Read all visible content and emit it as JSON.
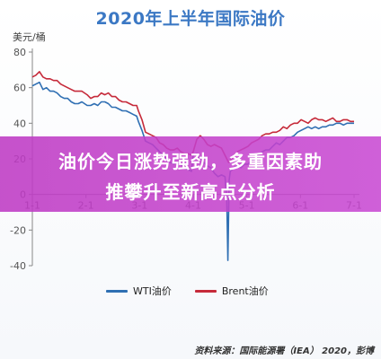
{
  "chart_data": {
    "type": "line",
    "title": "2020年上半年国际油价",
    "ylabel": "美元/桶",
    "xlabel": "",
    "ylim": [
      -40,
      80
    ],
    "yticks": [
      -40,
      -20,
      0,
      20,
      40,
      60,
      80
    ],
    "xticks": [
      "1-1",
      "2-1",
      "3-1",
      "4-1",
      "5-1",
      "6-1",
      "7-1"
    ],
    "legend_position": "bottom",
    "grid": false,
    "series": [
      {
        "name": "WTI油价",
        "color": "#2f6fb3",
        "points": [
          [
            0,
            61
          ],
          [
            2,
            62
          ],
          [
            4,
            63
          ],
          [
            6,
            59
          ],
          [
            8,
            60
          ],
          [
            10,
            58
          ],
          [
            12,
            58
          ],
          [
            14,
            57
          ],
          [
            16,
            55
          ],
          [
            18,
            54
          ],
          [
            20,
            54
          ],
          [
            22,
            52
          ],
          [
            24,
            51
          ],
          [
            26,
            51
          ],
          [
            28,
            52
          ],
          [
            31,
            50
          ],
          [
            33,
            50
          ],
          [
            35,
            51
          ],
          [
            37,
            50
          ],
          [
            39,
            52
          ],
          [
            41,
            52
          ],
          [
            43,
            51
          ],
          [
            45,
            49
          ],
          [
            47,
            49
          ],
          [
            49,
            48
          ],
          [
            51,
            47
          ],
          [
            53,
            47
          ],
          [
            55,
            46
          ],
          [
            57,
            45
          ],
          [
            59,
            44
          ],
          [
            60,
            41
          ],
          [
            62,
            36
          ],
          [
            64,
            30
          ],
          [
            66,
            29
          ],
          [
            68,
            28
          ],
          [
            70,
            26
          ],
          [
            72,
            24
          ],
          [
            74,
            22
          ],
          [
            76,
            20
          ],
          [
            78,
            18
          ],
          [
            80,
            17
          ],
          [
            82,
            18
          ],
          [
            84,
            17
          ],
          [
            86,
            15
          ],
          [
            88,
            14
          ],
          [
            90,
            13
          ],
          [
            91,
            22
          ],
          [
            93,
            23
          ],
          [
            95,
            20
          ],
          [
            97,
            18
          ],
          [
            99,
            16
          ],
          [
            101,
            15
          ],
          [
            103,
            12
          ],
          [
            105,
            10
          ],
          [
            107,
            11
          ],
          [
            109,
            10
          ],
          [
            110,
            -3
          ],
          [
            110.6,
            -37
          ],
          [
            111.3,
            8
          ],
          [
            112,
            13
          ],
          [
            114,
            15
          ],
          [
            116,
            16
          ],
          [
            118,
            15
          ],
          [
            120,
            17
          ],
          [
            122,
            17
          ],
          [
            124,
            19
          ],
          [
            126,
            20
          ],
          [
            128,
            22
          ],
          [
            130,
            24
          ],
          [
            132,
            25
          ],
          [
            134,
            25
          ],
          [
            136,
            27
          ],
          [
            138,
            29
          ],
          [
            140,
            28
          ],
          [
            142,
            30
          ],
          [
            144,
            32
          ],
          [
            146,
            32
          ],
          [
            148,
            33
          ],
          [
            150,
            35
          ],
          [
            152,
            36
          ],
          [
            154,
            37
          ],
          [
            156,
            38
          ],
          [
            158,
            37
          ],
          [
            160,
            38
          ],
          [
            162,
            37
          ],
          [
            164,
            38
          ],
          [
            166,
            38
          ],
          [
            168,
            39
          ],
          [
            170,
            39
          ],
          [
            172,
            40
          ],
          [
            174,
            40
          ],
          [
            176,
            39
          ],
          [
            178,
            40
          ],
          [
            180,
            40
          ],
          [
            182,
            40
          ]
        ]
      },
      {
        "name": "Brent油价",
        "color": "#c62a3a",
        "points": [
          [
            0,
            66
          ],
          [
            2,
            67
          ],
          [
            4,
            69
          ],
          [
            6,
            66
          ],
          [
            8,
            65
          ],
          [
            10,
            65
          ],
          [
            12,
            64
          ],
          [
            14,
            64
          ],
          [
            16,
            62
          ],
          [
            18,
            61
          ],
          [
            20,
            60
          ],
          [
            22,
            59
          ],
          [
            24,
            58
          ],
          [
            26,
            58
          ],
          [
            28,
            58
          ],
          [
            31,
            56
          ],
          [
            33,
            54
          ],
          [
            35,
            55
          ],
          [
            37,
            55
          ],
          [
            39,
            57
          ],
          [
            41,
            56
          ],
          [
            43,
            57
          ],
          [
            45,
            55
          ],
          [
            47,
            55
          ],
          [
            49,
            53
          ],
          [
            51,
            52
          ],
          [
            53,
            52
          ],
          [
            55,
            51
          ],
          [
            57,
            50
          ],
          [
            59,
            50
          ],
          [
            60,
            47
          ],
          [
            62,
            42
          ],
          [
            64,
            35
          ],
          [
            66,
            34
          ],
          [
            68,
            33
          ],
          [
            70,
            32
          ],
          [
            72,
            29
          ],
          [
            74,
            28
          ],
          [
            76,
            26
          ],
          [
            78,
            25
          ],
          [
            80,
            25
          ],
          [
            82,
            26
          ],
          [
            84,
            24
          ],
          [
            86,
            23
          ],
          [
            88,
            23
          ],
          [
            90,
            22
          ],
          [
            91,
            24
          ],
          [
            93,
            31
          ],
          [
            95,
            33
          ],
          [
            97,
            31
          ],
          [
            99,
            28
          ],
          [
            101,
            27
          ],
          [
            103,
            28
          ],
          [
            105,
            27
          ],
          [
            107,
            26
          ],
          [
            109,
            22
          ],
          [
            110,
            20
          ],
          [
            111,
            18
          ],
          [
            112,
            19
          ],
          [
            114,
            22
          ],
          [
            116,
            24
          ],
          [
            118,
            25
          ],
          [
            120,
            26
          ],
          [
            122,
            27
          ],
          [
            124,
            29
          ],
          [
            126,
            30
          ],
          [
            128,
            31
          ],
          [
            130,
            33
          ],
          [
            132,
            34
          ],
          [
            134,
            34
          ],
          [
            136,
            35
          ],
          [
            138,
            35
          ],
          [
            140,
            36
          ],
          [
            142,
            38
          ],
          [
            144,
            37
          ],
          [
            146,
            39
          ],
          [
            148,
            40
          ],
          [
            150,
            40
          ],
          [
            152,
            42
          ],
          [
            154,
            41
          ],
          [
            156,
            40
          ],
          [
            158,
            42
          ],
          [
            160,
            43
          ],
          [
            162,
            42
          ],
          [
            164,
            42
          ],
          [
            166,
            41
          ],
          [
            168,
            42
          ],
          [
            170,
            43
          ],
          [
            172,
            41
          ],
          [
            174,
            41
          ],
          [
            176,
            42
          ],
          [
            178,
            42
          ],
          [
            180,
            41
          ],
          [
            182,
            41
          ]
        ]
      }
    ]
  },
  "banner": {
    "line1": "油价今日涨势强劲，多重因素助",
    "line2": "推攀升至新高点分析"
  },
  "source": "资料来源：国际能源署（IEA） 2020，彭博"
}
